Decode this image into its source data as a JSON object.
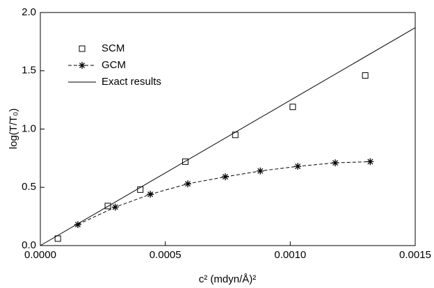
{
  "chart_data": {
    "type": "scatter",
    "xlabel": "c² (mdyn/Å)²",
    "ylabel": "log(T/T₀)",
    "xlim": [
      0,
      0.0015
    ],
    "ylim": [
      0,
      2.0
    ],
    "xticks": [
      {
        "value": 0,
        "label": "0.0000"
      },
      {
        "value": 0.0005,
        "label": "0.0005"
      },
      {
        "value": 0.001,
        "label": "0.0010"
      },
      {
        "value": 0.0015,
        "label": "0.0015"
      }
    ],
    "yticks": [
      {
        "value": 0,
        "label": "0.0"
      },
      0.5,
      {
        "value": 1,
        "label": "1.0"
      },
      1.5,
      {
        "value": 2,
        "label": "2.0"
      }
    ],
    "legend": "upper left",
    "series": [
      {
        "name": "SCM",
        "color": "#000000",
        "marker": "square",
        "line": "none",
        "x": [
          7e-05,
          0.00027,
          0.0004,
          0.00058,
          0.00078,
          0.00101,
          0.0013
        ],
        "values": [
          0.06,
          0.34,
          0.48,
          0.72,
          0.95,
          1.19,
          1.46
        ]
      },
      {
        "name": "GCM",
        "color": "#000000",
        "marker": "star",
        "line": "dashed",
        "x": [
          0.00015,
          0.0003,
          0.00044,
          0.00059,
          0.00074,
          0.00088,
          0.00103,
          0.00118,
          0.00132
        ],
        "values": [
          0.18,
          0.33,
          0.44,
          0.53,
          0.59,
          0.64,
          0.68,
          0.71,
          0.72
        ]
      },
      {
        "name": "Exact results",
        "color": "#000000",
        "marker": "none",
        "line": "solid",
        "x": [
          0,
          0.0015
        ],
        "values": [
          0,
          1.87
        ]
      }
    ]
  }
}
